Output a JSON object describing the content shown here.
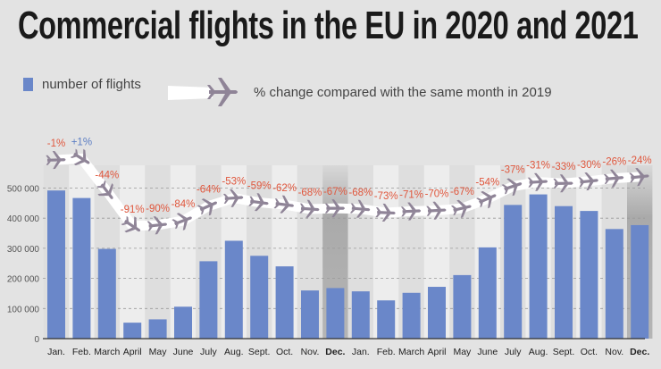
{
  "title": "Commercial flights in the EU in 2020 and 2021",
  "legend": {
    "bars": "number of flights",
    "line": "% change compared with the same month in 2019",
    "line_icon": "airplane-icon"
  },
  "colors": {
    "bar": "#6a87c9",
    "negative_label": "#e0573d",
    "positive_label": "#5d7fc4",
    "plane": "#8f8497",
    "background": "#e3e3e3"
  },
  "chart_data": {
    "type": "bar",
    "title": "Commercial flights in the EU in 2020 and 2021",
    "categories": [
      "Jan.",
      "Feb.",
      "March",
      "April",
      "May",
      "June",
      "July",
      "Aug.",
      "Sept.",
      "Oct.",
      "Nov.",
      "Dec.",
      "Jan.",
      "Feb.",
      "March",
      "April",
      "May",
      "June",
      "July",
      "Aug.",
      "Sept.",
      "Oct.",
      "Nov.",
      "Dec."
    ],
    "bold_categories": [
      11,
      23
    ],
    "series": [
      {
        "name": "number of flights",
        "type": "bar",
        "values": [
          492000,
          467000,
          298000,
          53000,
          64000,
          106000,
          257000,
          325000,
          275000,
          240000,
          160000,
          168000,
          157000,
          127000,
          152000,
          172000,
          211000,
          303000,
          444000,
          479000,
          440000,
          424000,
          364000,
          377000
        ]
      },
      {
        "name": "% change compared with the same month in 2019",
        "type": "line",
        "values": [
          -1,
          1,
          -44,
          -91,
          -90,
          -84,
          -64,
          -53,
          -59,
          -62,
          -68,
          -67,
          -68,
          -73,
          -71,
          -70,
          -67,
          -54,
          -37,
          -31,
          -33,
          -30,
          -26,
          -24
        ],
        "labels": [
          "-1%",
          "+1%",
          "-44%",
          "-91%",
          "-90%",
          "-84%",
          "-64%",
          "-53%",
          "-59%",
          "-62%",
          "-68%",
          "-67%",
          "-68%",
          "-73%",
          "-71%",
          "-70%",
          "-67%",
          "-54%",
          "-37%",
          "-31%",
          "-33%",
          "-30%",
          "-26%",
          "-24%"
        ]
      }
    ],
    "yticks": [
      "0",
      "100 000",
      "200 000",
      "300 000",
      "400 000",
      "500 000"
    ],
    "ylim": [
      0,
      500000
    ],
    "grid": true,
    "legend": "top"
  }
}
